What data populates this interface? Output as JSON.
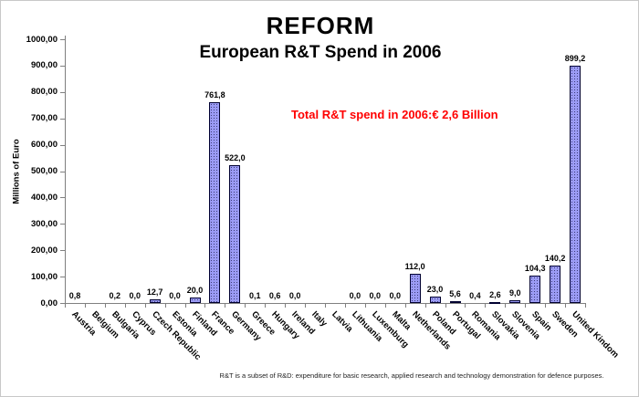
{
  "title": "REFORM",
  "subtitle": "European R&T Spend in 2006",
  "annotation": {
    "text": "Total R&T spend in 2006:€ 2,6 Billion",
    "color": "#FF0000"
  },
  "footnote": "R&T is a subset of R&D: expenditure for basic research, applied research and technology demonstration for defence purposes.",
  "chart_data": {
    "type": "bar",
    "title": "REFORM",
    "subtitle": "European R&T Spend in 2006",
    "xlabel": "",
    "ylabel": "Millions of Euro",
    "ylim": [
      0,
      1000
    ],
    "ytick_step": 100,
    "ytick_labels": [
      "0,00",
      "100,00",
      "200,00",
      "300,00",
      "400,00",
      "500,00",
      "600,00",
      "700,00",
      "800,00",
      "900,00",
      "1000,00"
    ],
    "grid": false,
    "legend": false,
    "bar_color": "#9999FF",
    "bar_border": "#000030",
    "categories": [
      "Austria",
      "Belgium",
      "Bulgaria",
      "Cyprus",
      "Czech Republic",
      "Estonia",
      "Finland",
      "France",
      "Germany",
      "Greece",
      "Hungary",
      "Ireland",
      "Italy",
      "Latvia",
      "Lithuania",
      "Luxemburg",
      "Malta",
      "Netherlands",
      "Poland",
      "Portugal",
      "Romania",
      "Slovakia",
      "Slovenia",
      "Spain",
      "Sweden",
      "United Kindom"
    ],
    "values": [
      0.8,
      null,
      0.2,
      0.0,
      12.7,
      0.0,
      20.0,
      761.8,
      522.0,
      0.1,
      0.6,
      0.0,
      null,
      null,
      0.0,
      0.0,
      0.0,
      112.0,
      23.0,
      5.6,
      0.4,
      2.6,
      9.0,
      104.3,
      140.2,
      899.2
    ],
    "value_labels": [
      "0,8",
      "",
      "0,2",
      "0,0",
      "12,7",
      "0,0",
      "20,0",
      "761,8",
      "522,0",
      "0,1",
      "0,6",
      "0,0",
      "",
      "",
      "0,0",
      "0,0",
      "0,0",
      "112,0",
      "23,0",
      "5,6",
      "0,4",
      "2,6",
      "9,0",
      "104,3",
      "140,2",
      "899,2"
    ]
  }
}
